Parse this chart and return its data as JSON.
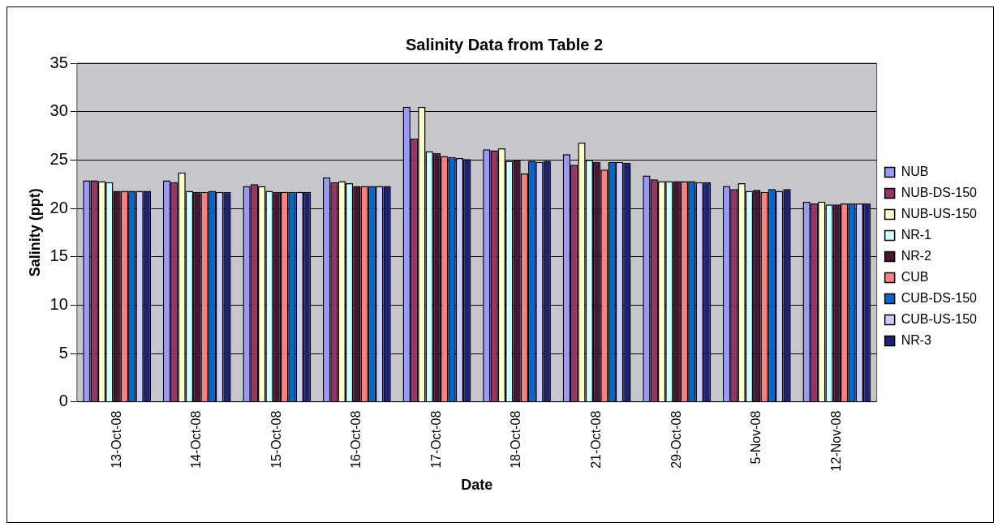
{
  "chart_data": {
    "type": "bar",
    "title": "Salinity Data from Table 2",
    "xlabel": "Date",
    "ylabel": "Salinity (ppt)",
    "categories": [
      "13-Oct-08",
      "14-Oct-08",
      "15-Oct-08",
      "16-Oct-08",
      "17-Oct-08",
      "18-Oct-08",
      "21-Oct-08",
      "29-Oct-08",
      "5-Nov-08",
      "12-Nov-08"
    ],
    "series": [
      {
        "name": "NUB",
        "color": "#9999ff",
        "values": [
          22.9,
          22.9,
          22.3,
          23.2,
          30.5,
          26.1,
          25.6,
          23.4,
          22.3,
          20.7
        ]
      },
      {
        "name": "NUB-DS-150",
        "color": "#993366",
        "values": [
          22.9,
          22.7,
          22.5,
          22.7,
          27.2,
          26.0,
          24.5,
          23.0,
          22.0,
          20.5
        ]
      },
      {
        "name": "NUB-US-150",
        "color": "#ffffcc",
        "values": [
          22.8,
          23.7,
          22.3,
          22.8,
          30.5,
          26.2,
          26.8,
          22.8,
          22.6,
          20.7
        ]
      },
      {
        "name": "NR-1",
        "color": "#ccffff",
        "values": [
          22.7,
          21.8,
          21.8,
          22.6,
          25.9,
          24.9,
          25.0,
          22.8,
          21.8,
          20.4
        ]
      },
      {
        "name": "NR-2",
        "color": "#4a1535",
        "values": [
          21.8,
          21.7,
          21.7,
          22.3,
          25.7,
          25.0,
          24.8,
          22.8,
          21.9,
          20.4
        ]
      },
      {
        "name": "CUB",
        "color": "#ff8080",
        "values": [
          21.8,
          21.7,
          21.7,
          22.3,
          25.4,
          23.6,
          24.0,
          22.8,
          21.7,
          20.5
        ]
      },
      {
        "name": "CUB-DS-150",
        "color": "#0066cc",
        "values": [
          21.8,
          21.8,
          21.7,
          22.3,
          25.3,
          24.9,
          24.8,
          22.8,
          22.0,
          20.5
        ]
      },
      {
        "name": "CUB-US-150",
        "color": "#ccccff",
        "values": [
          21.8,
          21.7,
          21.7,
          22.3,
          25.2,
          24.8,
          24.8,
          22.7,
          21.8,
          20.5
        ]
      },
      {
        "name": "NR-3",
        "color": "#1a237a",
        "values": [
          21.8,
          21.7,
          21.7,
          22.3,
          25.1,
          24.9,
          24.7,
          22.7,
          22.0,
          20.5
        ]
      }
    ],
    "ylim": [
      0,
      35
    ],
    "yticks": [
      0,
      5,
      10,
      15,
      20,
      25,
      30,
      35
    ],
    "grid": "y",
    "legend": "right"
  }
}
